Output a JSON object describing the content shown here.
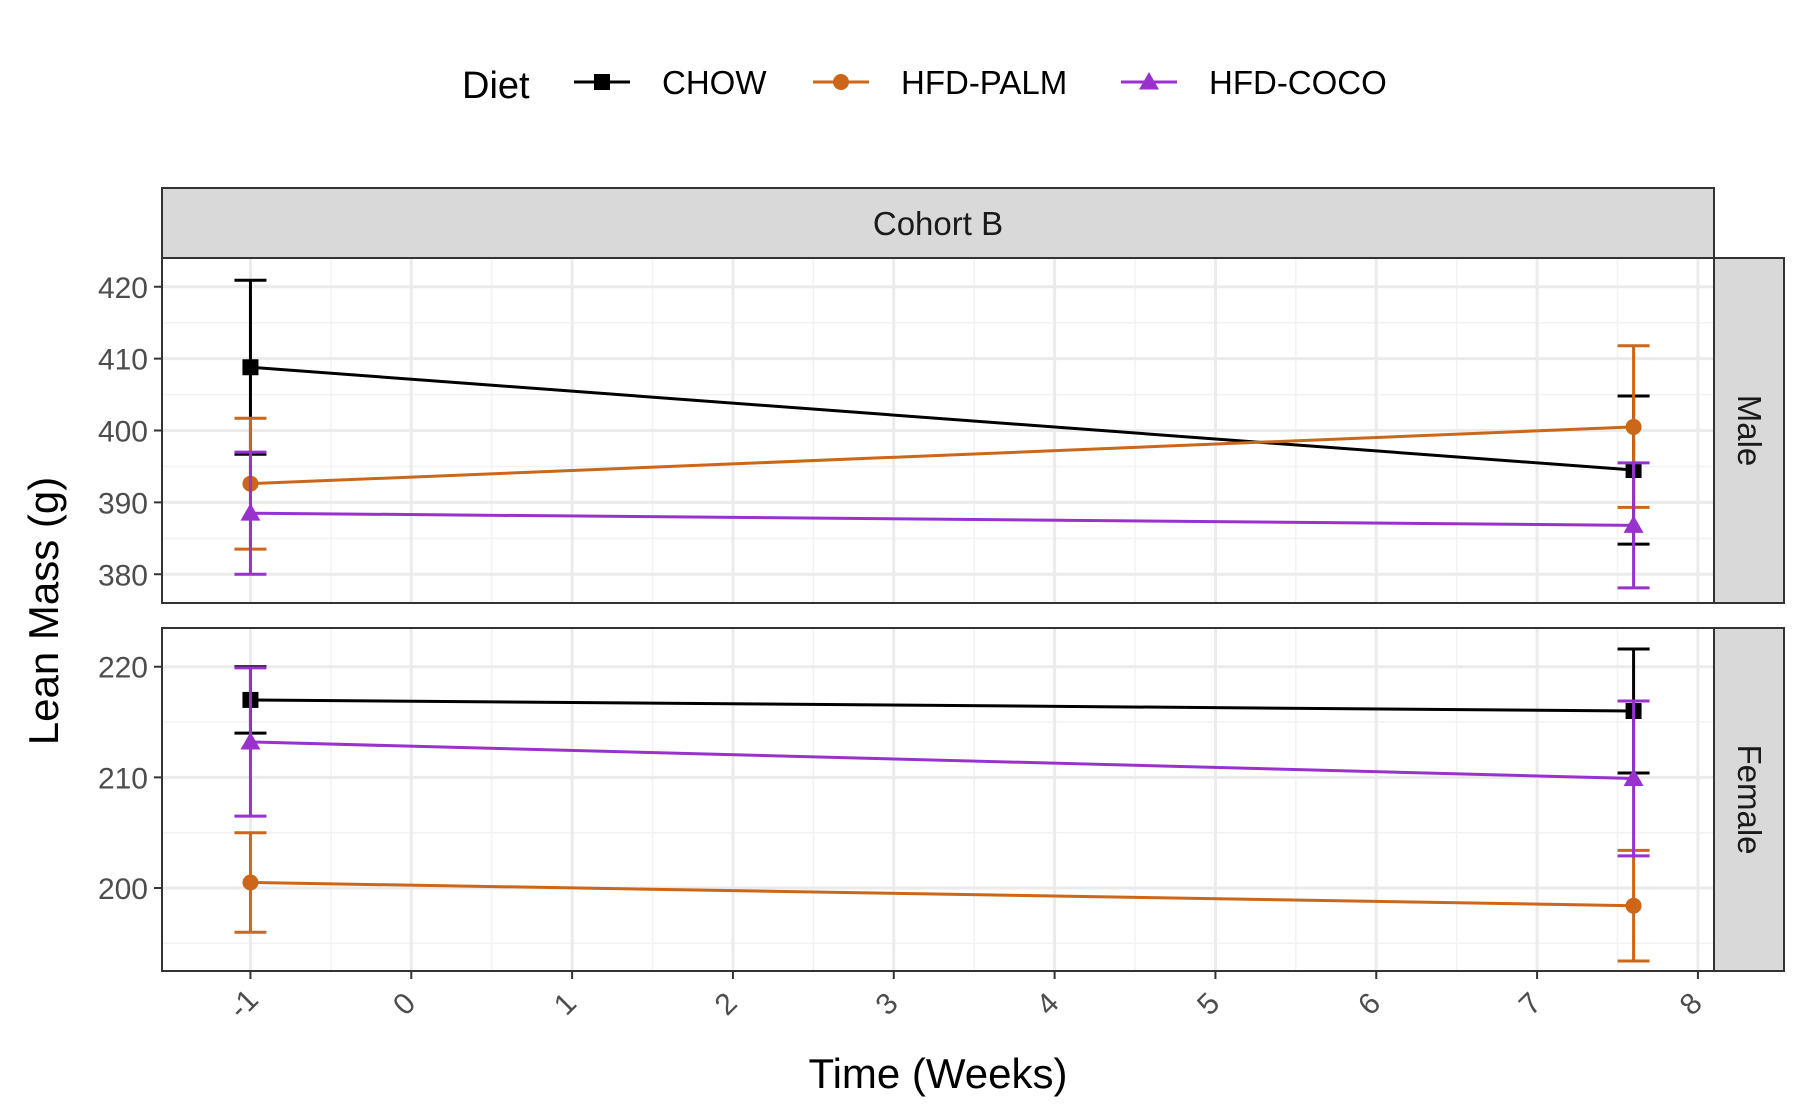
{
  "chart_data": {
    "type": "line",
    "facet_column_label": "Cohort B",
    "xlabel": "Time (Weeks)",
    "ylabel": "Lean Mass (g)",
    "x_ticks": [
      -1,
      0,
      1,
      2,
      3,
      4,
      5,
      6,
      7,
      8
    ],
    "x_tick_labels": [
      "-1",
      "0",
      "1",
      "2",
      "3",
      "4",
      "5",
      "6",
      "7",
      "8"
    ],
    "xlim": [
      -1.55,
      8.1
    ],
    "grid": true,
    "legend": {
      "title": "Diet",
      "position": "top",
      "entries": [
        {
          "label": "CHOW",
          "color": "#000000",
          "marker": "square"
        },
        {
          "label": "HFD-PALM",
          "color": "#cc6618",
          "marker": "circle"
        },
        {
          "label": "HFD-COCO",
          "color": "#9932cc",
          "marker": "triangle"
        }
      ]
    },
    "panels": [
      {
        "strip_label": "Male",
        "ylim": [
          376,
          424
        ],
        "y_ticks": [
          380,
          390,
          400,
          410,
          420
        ],
        "y_tick_labels": [
          "380",
          "390",
          "400",
          "410",
          "420"
        ],
        "series": [
          {
            "name": "CHOW",
            "color": "#000000",
            "marker": "square",
            "x": [
              -1,
              7.6
            ],
            "y": [
              408.8,
              394.5
            ],
            "err_low": [
              396.7,
              384.2
            ],
            "err_high": [
              420.9,
              404.8
            ]
          },
          {
            "name": "HFD-PALM",
            "color": "#cc6618",
            "marker": "circle",
            "x": [
              -1,
              7.6
            ],
            "y": [
              392.6,
              400.5
            ],
            "err_low": [
              383.5,
              389.3
            ],
            "err_high": [
              401.7,
              411.8
            ]
          },
          {
            "name": "HFD-COCO",
            "color": "#9932cc",
            "marker": "triangle",
            "x": [
              -1,
              7.6
            ],
            "y": [
              388.5,
              386.8
            ],
            "err_low": [
              380.0,
              378.1
            ],
            "err_high": [
              397.0,
              395.5
            ]
          }
        ]
      },
      {
        "strip_label": "Female",
        "ylim": [
          192.5,
          223.5
        ],
        "y_ticks": [
          200,
          210,
          220
        ],
        "y_tick_labels": [
          "200",
          "210",
          "220"
        ],
        "series": [
          {
            "name": "CHOW",
            "color": "#000000",
            "marker": "square",
            "x": [
              -1,
              7.6
            ],
            "y": [
              217.0,
              216.0
            ],
            "err_low": [
              214.0,
              210.4
            ],
            "err_high": [
              220.0,
              221.6
            ]
          },
          {
            "name": "HFD-PALM",
            "color": "#cc6618",
            "marker": "circle",
            "x": [
              -1,
              7.6
            ],
            "y": [
              200.5,
              198.4
            ],
            "err_low": [
              196.0,
              193.4
            ],
            "err_high": [
              205.0,
              203.4
            ]
          },
          {
            "name": "HFD-COCO",
            "color": "#9932cc",
            "marker": "triangle",
            "x": [
              -1,
              7.6
            ],
            "y": [
              213.2,
              209.9
            ],
            "err_low": [
              206.5,
              202.9
            ],
            "err_high": [
              219.9,
              216.9
            ]
          }
        ]
      }
    ]
  }
}
